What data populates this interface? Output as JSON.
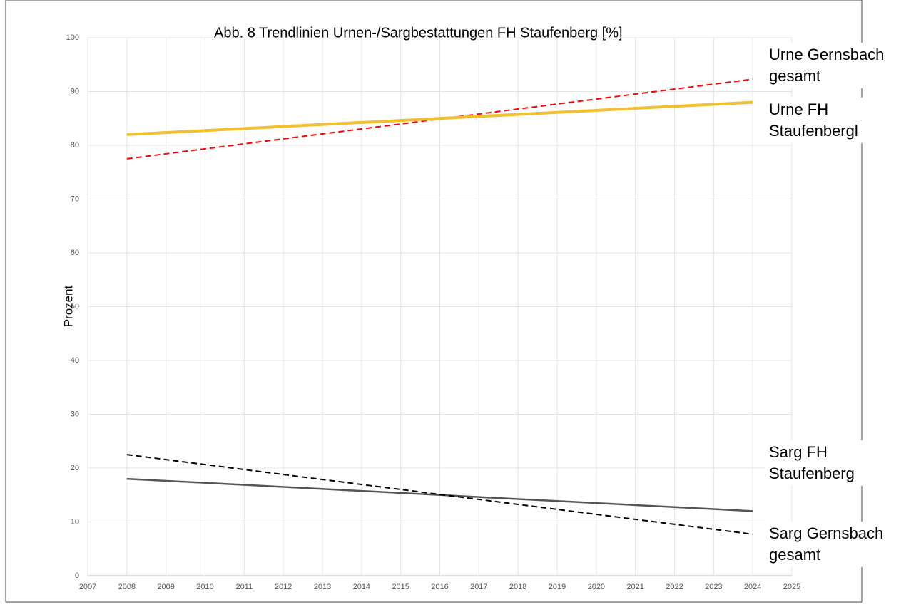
{
  "chart_data": {
    "type": "line",
    "title": "Abb. 8 Trendlinien Urnen-/Sargbestattungen FH Staufenberg [%]",
    "y_label": "Prozent",
    "xlim": [
      2007,
      2025
    ],
    "xticks": [
      2007,
      2008,
      2009,
      2010,
      2011,
      2012,
      2013,
      2014,
      2015,
      2016,
      2017,
      2018,
      2019,
      2020,
      2021,
      2022,
      2023,
      2024,
      2025
    ],
    "ylim": [
      0,
      100
    ],
    "yticks": [
      0,
      10,
      20,
      30,
      40,
      50,
      60,
      70,
      80,
      90,
      100
    ],
    "grid": true,
    "series": [
      {
        "name": "Urne Gernsbach gesamt",
        "color": "#ff0000",
        "style": "dashed",
        "x": [
          2008,
          2024
        ],
        "values": [
          77.5,
          92.3
        ]
      },
      {
        "name": "Urne FH Staufenbergl",
        "color": "#f0c030",
        "style": "solid",
        "x": [
          2008,
          2024
        ],
        "values": [
          82,
          88
        ]
      },
      {
        "name": "Sarg FH Staufenberg",
        "color": "#555555",
        "style": "solid",
        "x": [
          2008,
          2024
        ],
        "values": [
          18,
          12
        ]
      },
      {
        "name": "Sarg Gernsbach gesamt",
        "color": "#000000",
        "style": "dashed",
        "x": [
          2008,
          2024
        ],
        "values": [
          22.5,
          7.7
        ]
      }
    ]
  }
}
